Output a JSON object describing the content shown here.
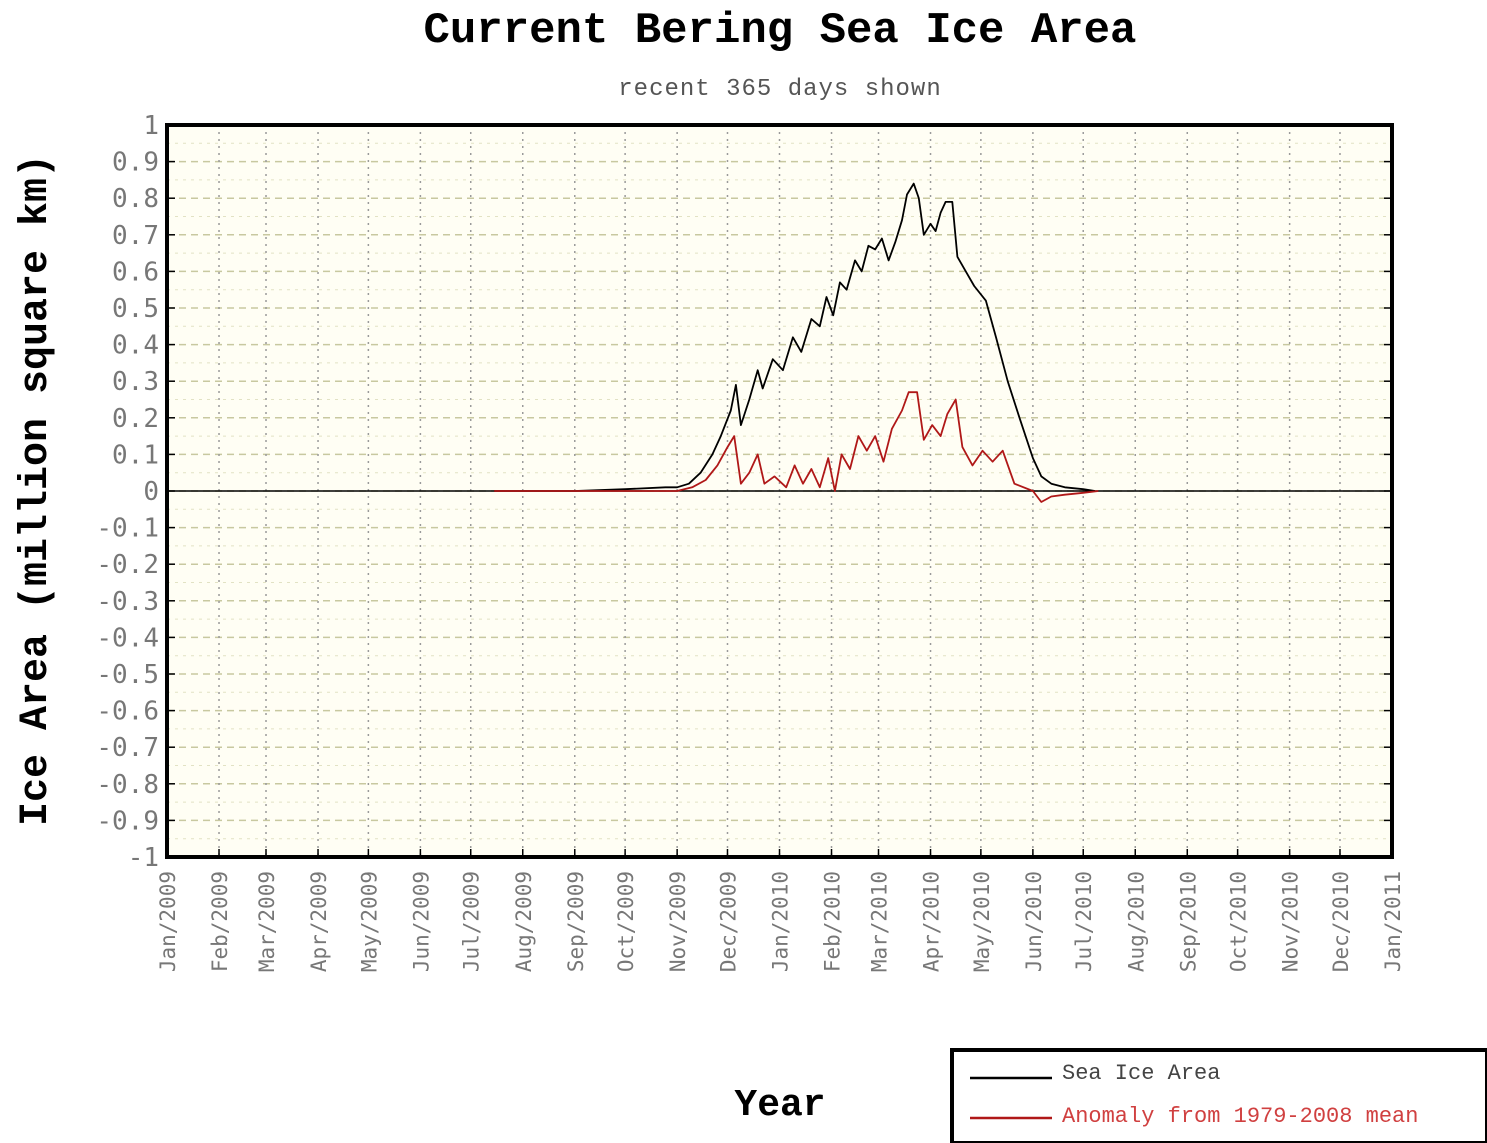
{
  "chart_data": {
    "type": "line",
    "title": "Current Bering Sea Ice Area",
    "subtitle": "recent 365 days shown",
    "xlabel": "Year",
    "ylabel": "Ice Area (million square km)",
    "ylim": [
      -1,
      1
    ],
    "yticks": [
      "1",
      "0.9",
      "0.8",
      "0.7",
      "0.6",
      "0.5",
      "0.4",
      "0.3",
      "0.2",
      "0.1",
      "0",
      "-0.1",
      "-0.2",
      "-0.3",
      "-0.4",
      "-0.5",
      "-0.6",
      "-0.7",
      "-0.8",
      "-0.9",
      "-1"
    ],
    "xticks": [
      "Jan/2009",
      "Feb/2009",
      "Mar/2009",
      "Apr/2009",
      "May/2009",
      "Jun/2009",
      "Jul/2009",
      "Aug/2009",
      "Sep/2009",
      "Oct/2009",
      "Nov/2009",
      "Dec/2009",
      "Jan/2010",
      "Feb/2010",
      "Mar/2010",
      "Apr/2010",
      "May/2010",
      "Jun/2010",
      "Jul/2010",
      "Aug/2010",
      "Sep/2010",
      "Oct/2010",
      "Nov/2010",
      "Dec/2010",
      "Jan/2011"
    ],
    "grid": true,
    "legend_position": "bottom-right",
    "series": [
      {
        "name": "Sea Ice Area",
        "color": "#000000",
        "points": [
          [
            "2009-07-15",
            0.0
          ],
          [
            "2009-08-10",
            0.0
          ],
          [
            "2009-09-01",
            0.0
          ],
          [
            "2009-10-01",
            0.005
          ],
          [
            "2009-10-25",
            0.01
          ],
          [
            "2009-11-01",
            0.01
          ],
          [
            "2009-11-08",
            0.02
          ],
          [
            "2009-11-15",
            0.05
          ],
          [
            "2009-11-22",
            0.1
          ],
          [
            "2009-11-27",
            0.15
          ],
          [
            "2009-12-03",
            0.22
          ],
          [
            "2009-12-06",
            0.29
          ],
          [
            "2009-12-09",
            0.18
          ],
          [
            "2009-12-14",
            0.25
          ],
          [
            "2009-12-19",
            0.33
          ],
          [
            "2009-12-22",
            0.28
          ],
          [
            "2009-12-28",
            0.36
          ],
          [
            "2010-01-03",
            0.33
          ],
          [
            "2010-01-09",
            0.42
          ],
          [
            "2010-01-14",
            0.38
          ],
          [
            "2010-01-20",
            0.47
          ],
          [
            "2010-01-25",
            0.45
          ],
          [
            "2010-01-29",
            0.53
          ],
          [
            "2010-02-02",
            0.48
          ],
          [
            "2010-02-06",
            0.57
          ],
          [
            "2010-02-10",
            0.55
          ],
          [
            "2010-02-15",
            0.63
          ],
          [
            "2010-02-19",
            0.6
          ],
          [
            "2010-02-23",
            0.67
          ],
          [
            "2010-02-27",
            0.66
          ],
          [
            "2010-03-03",
            0.69
          ],
          [
            "2010-03-07",
            0.63
          ],
          [
            "2010-03-11",
            0.68
          ],
          [
            "2010-03-15",
            0.74
          ],
          [
            "2010-03-18",
            0.81
          ],
          [
            "2010-03-22",
            0.84
          ],
          [
            "2010-03-25",
            0.8
          ],
          [
            "2010-03-28",
            0.7
          ],
          [
            "2010-04-01",
            0.73
          ],
          [
            "2010-04-04",
            0.71
          ],
          [
            "2010-04-07",
            0.76
          ],
          [
            "2010-04-10",
            0.79
          ],
          [
            "2010-04-14",
            0.79
          ],
          [
            "2010-04-17",
            0.64
          ],
          [
            "2010-04-22",
            0.6
          ],
          [
            "2010-04-27",
            0.56
          ],
          [
            "2010-05-04",
            0.52
          ],
          [
            "2010-05-10",
            0.42
          ],
          [
            "2010-05-17",
            0.3
          ],
          [
            "2010-05-24",
            0.2
          ],
          [
            "2010-06-01",
            0.09
          ],
          [
            "2010-06-06",
            0.04
          ],
          [
            "2010-06-12",
            0.02
          ],
          [
            "2010-06-20",
            0.01
          ],
          [
            "2010-07-01",
            0.005
          ],
          [
            "2010-07-08",
            0.0
          ]
        ]
      },
      {
        "name": "Anomaly from 1979-2008 mean",
        "color": "#b01818",
        "points": [
          [
            "2009-07-15",
            0.0
          ],
          [
            "2009-08-10",
            0.0
          ],
          [
            "2009-09-01",
            0.0
          ],
          [
            "2009-10-01",
            0.0
          ],
          [
            "2009-10-20",
            0.0
          ],
          [
            "2009-11-01",
            0.0
          ],
          [
            "2009-11-10",
            0.01
          ],
          [
            "2009-11-18",
            0.03
          ],
          [
            "2009-11-25",
            0.07
          ],
          [
            "2009-12-01",
            0.12
          ],
          [
            "2009-12-05",
            0.15
          ],
          [
            "2009-12-09",
            0.02
          ],
          [
            "2009-12-14",
            0.05
          ],
          [
            "2009-12-19",
            0.1
          ],
          [
            "2009-12-23",
            0.02
          ],
          [
            "2009-12-29",
            0.04
          ],
          [
            "2010-01-05",
            0.01
          ],
          [
            "2010-01-10",
            0.07
          ],
          [
            "2010-01-15",
            0.02
          ],
          [
            "2010-01-20",
            0.06
          ],
          [
            "2010-01-25",
            0.01
          ],
          [
            "2010-01-30",
            0.09
          ],
          [
            "2010-02-03",
            0.0
          ],
          [
            "2010-02-07",
            0.1
          ],
          [
            "2010-02-12",
            0.06
          ],
          [
            "2010-02-17",
            0.15
          ],
          [
            "2010-02-22",
            0.11
          ],
          [
            "2010-02-27",
            0.15
          ],
          [
            "2010-03-04",
            0.08
          ],
          [
            "2010-03-09",
            0.17
          ],
          [
            "2010-03-15",
            0.22
          ],
          [
            "2010-03-19",
            0.27
          ],
          [
            "2010-03-24",
            0.27
          ],
          [
            "2010-03-28",
            0.14
          ],
          [
            "2010-04-02",
            0.18
          ],
          [
            "2010-04-07",
            0.15
          ],
          [
            "2010-04-11",
            0.21
          ],
          [
            "2010-04-16",
            0.25
          ],
          [
            "2010-04-20",
            0.12
          ],
          [
            "2010-04-26",
            0.07
          ],
          [
            "2010-05-02",
            0.11
          ],
          [
            "2010-05-08",
            0.08
          ],
          [
            "2010-05-14",
            0.11
          ],
          [
            "2010-05-21",
            0.02
          ],
          [
            "2010-06-01",
            0.0
          ],
          [
            "2010-06-06",
            -0.03
          ],
          [
            "2010-06-12",
            -0.015
          ],
          [
            "2010-06-20",
            -0.01
          ],
          [
            "2010-07-01",
            -0.005
          ],
          [
            "2010-07-10",
            0.0
          ]
        ]
      }
    ]
  }
}
